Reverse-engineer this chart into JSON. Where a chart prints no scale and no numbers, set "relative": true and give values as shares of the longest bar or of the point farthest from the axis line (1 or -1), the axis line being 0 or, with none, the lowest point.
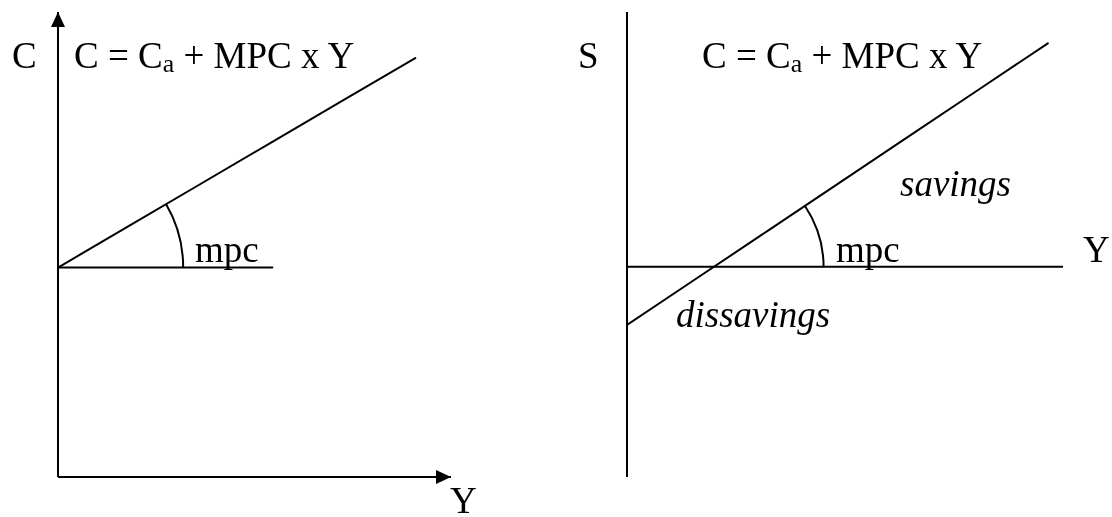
{
  "chart_data": [
    {
      "type": "line",
      "title": "C = C$_{a}$ + MPC x Y",
      "xlabel": "Y",
      "ylabel": "C",
      "relative": true,
      "categories": [
        null,
        null,
        null,
        null,
        null,
        null
      ],
      "series": [
        {
          "color": "#000000",
          "values": [
            0.5,
            0.6,
            0.7,
            0.8,
            0.9,
            1
          ]
        },
        {
          "color": "#000000",
          "values": [
            0.5,
            0.5,
            0.5,
            0.5,
            null,
            null
          ]
        }
      ],
      "annotations": [
        "mpc"
      ]
    },
    {
      "type": "line",
      "title": "C = C$_{a}$ + MPC x Y",
      "xlabel": "Y",
      "ylabel": "S",
      "relative": true,
      "categories": [
        null,
        null,
        null,
        null,
        null,
        null,
        null
      ],
      "series": [
        {
          "color": "#000000",
          "values": [
            -0.26,
            -0.05,
            0.16,
            0.37,
            0.58,
            0.79,
            1
          ]
        }
      ],
      "annotations": [
        "savings",
        "dissavings",
        "mpc"
      ]
    }
  ]
}
